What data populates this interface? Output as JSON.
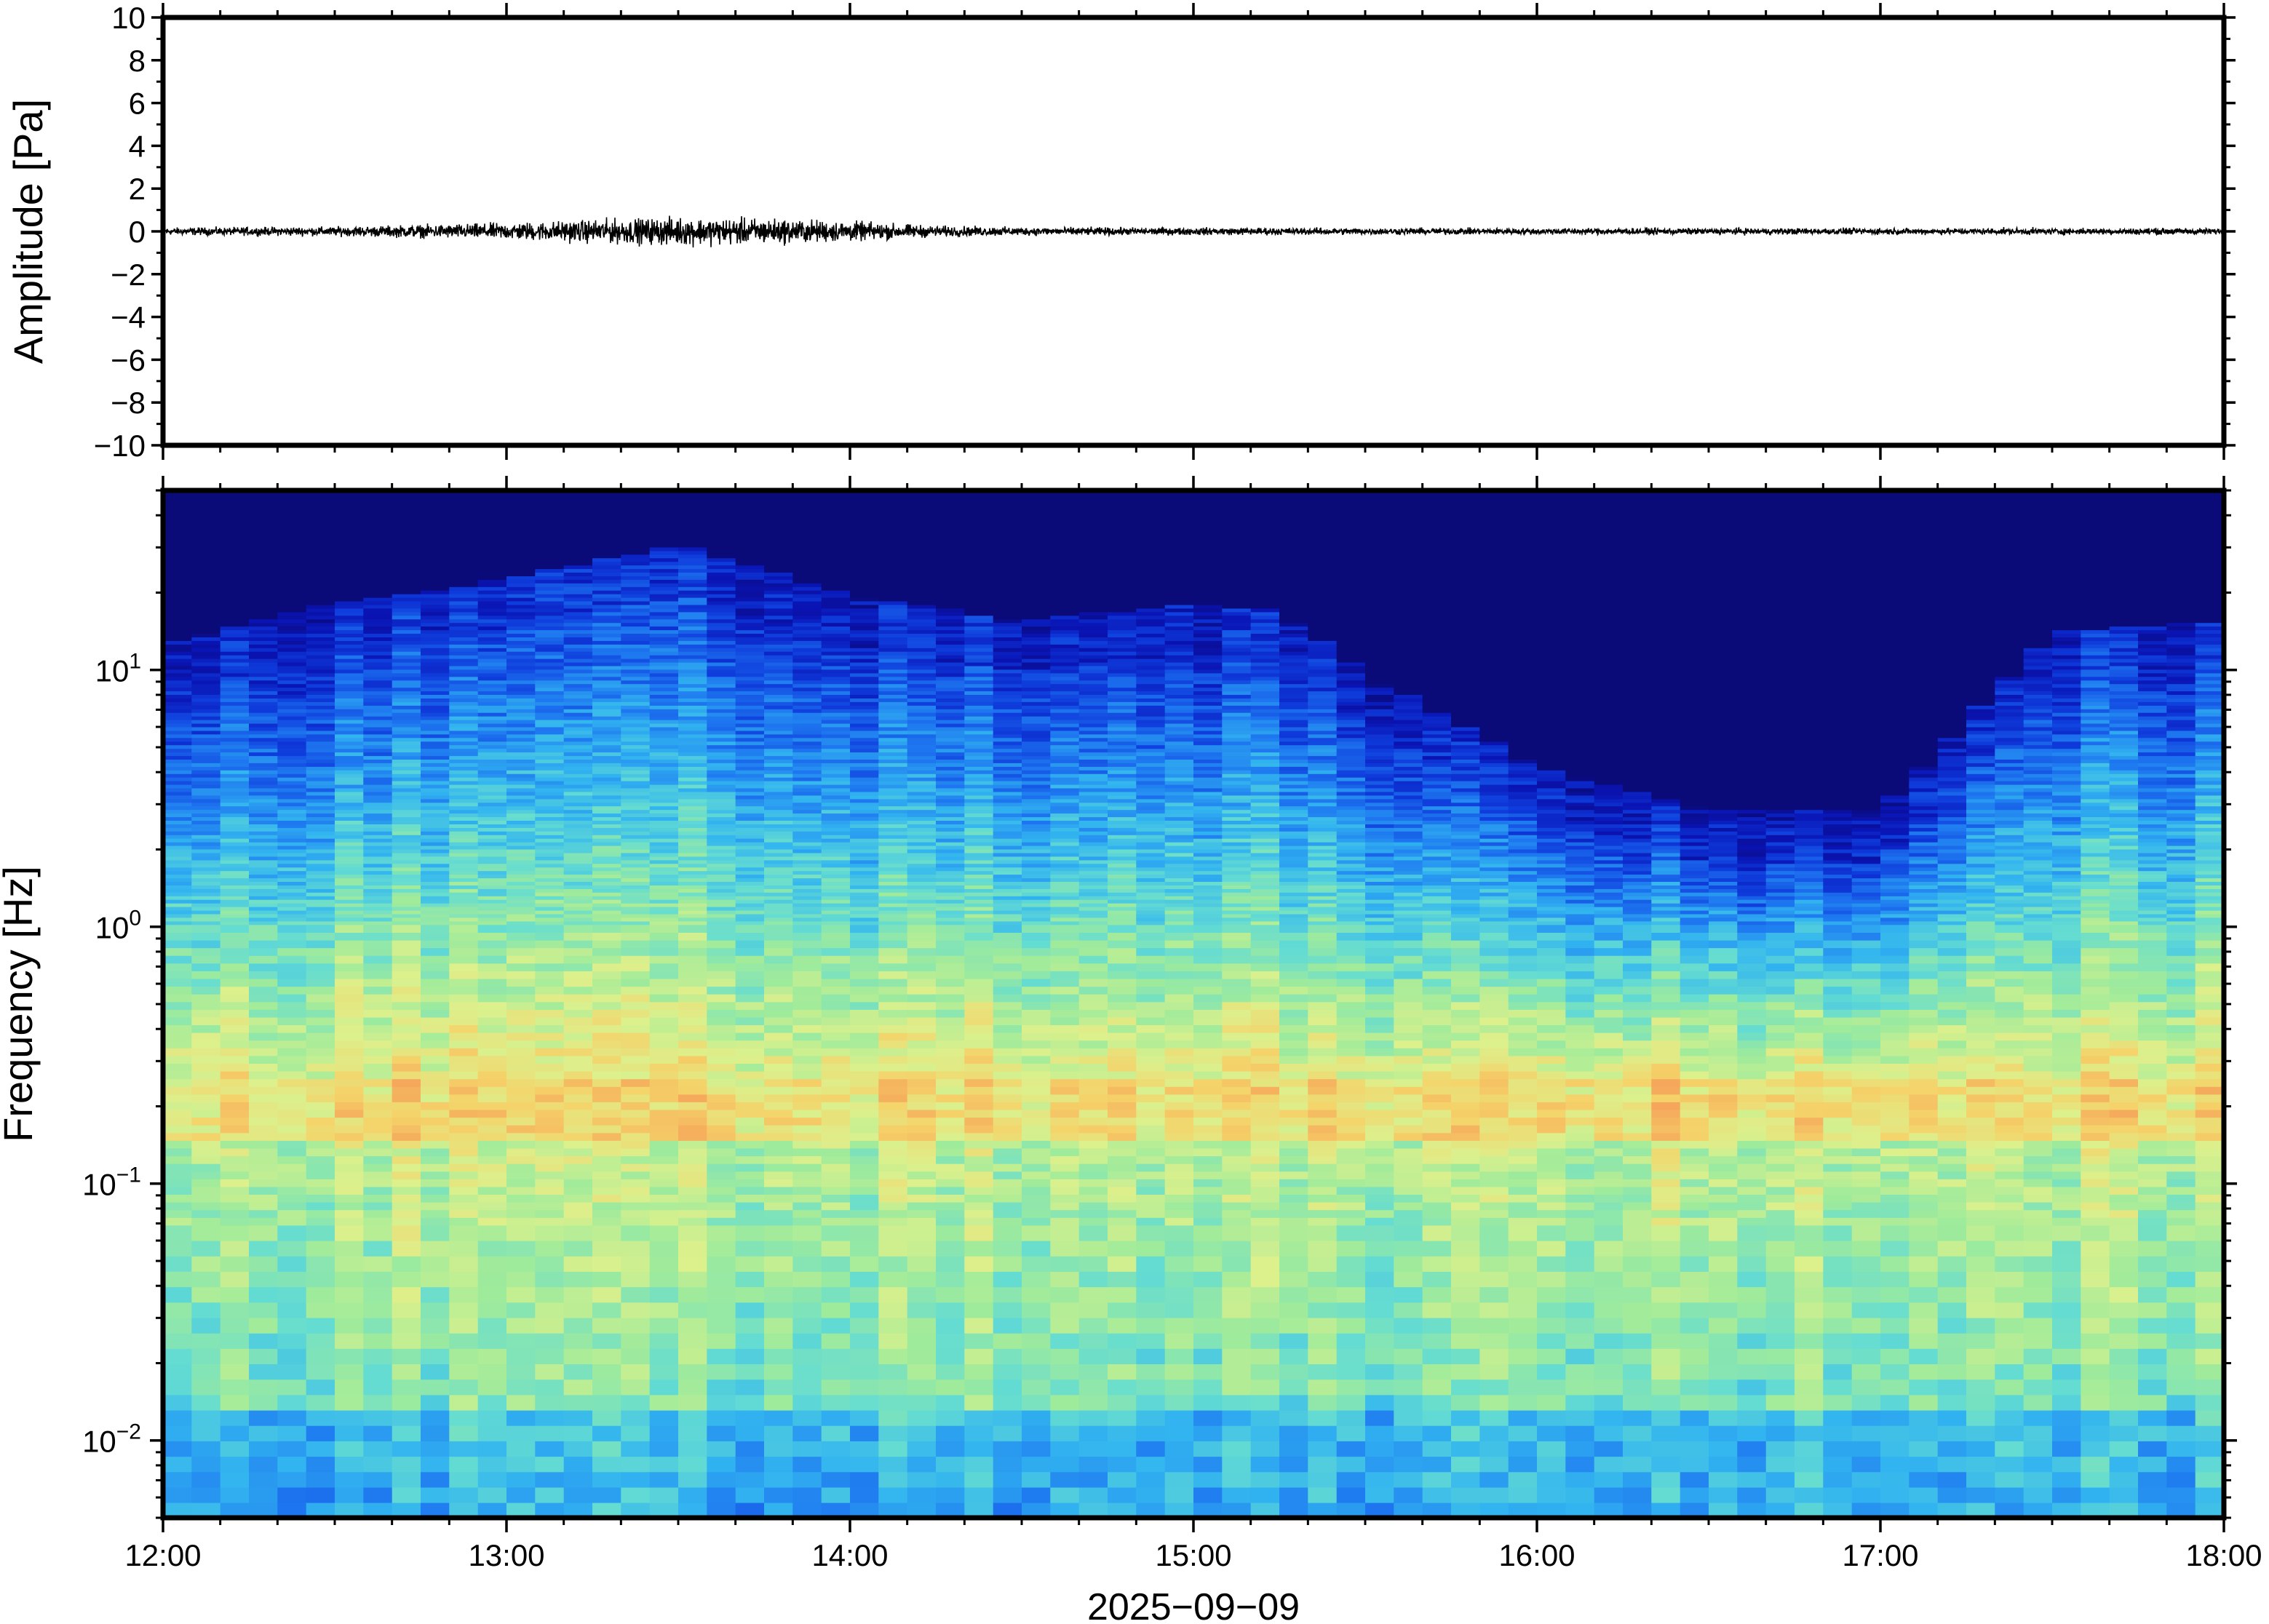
{
  "chart_data": [
    {
      "type": "line",
      "name": "amplitude-panel",
      "ylabel": "Amplitude [Pa]",
      "ylim": [
        -10,
        10
      ],
      "yticks": [
        "10",
        "8",
        "6",
        "4",
        "2",
        "0",
        "−2",
        "−4",
        "−6",
        "−8",
        "−10"
      ],
      "ytick_values": [
        10,
        8,
        6,
        4,
        2,
        0,
        -2,
        -4,
        -6,
        -8,
        -10
      ],
      "x_range": [
        "2025-09-09T12:00",
        "2025-09-09T18:00"
      ],
      "envelope": {
        "times": [
          "12:00",
          "12:30",
          "13:00",
          "13:15",
          "13:30",
          "13:45",
          "14:00",
          "14:15",
          "14:30",
          "15:00",
          "16:00",
          "17:00",
          "18:00"
        ],
        "half_width_pa": [
          0.08,
          0.1,
          0.18,
          0.25,
          0.3,
          0.28,
          0.22,
          0.12,
          0.09,
          0.08,
          0.07,
          0.07,
          0.07
        ]
      },
      "grid": false
    },
    {
      "type": "heatmap",
      "name": "spectrogram-panel",
      "ylabel": "Frequency [Hz]",
      "yscale": "log",
      "ylim": [
        0.005,
        50
      ],
      "yticks": [
        {
          "base": "10",
          "exp": "1",
          "value": 10
        },
        {
          "base": "10",
          "exp": "0",
          "value": 1
        },
        {
          "base": "10",
          "exp": "−1",
          "value": 0.1
        },
        {
          "base": "10",
          "exp": "−2",
          "value": 0.01
        }
      ],
      "xticks": [
        "12:00",
        "13:00",
        "14:00",
        "15:00",
        "16:00",
        "17:00",
        "18:00"
      ],
      "xlabel": "2025−09−09",
      "x_range": [
        "2025-09-09T12:00",
        "2025-09-09T18:00"
      ],
      "colormap": [
        "#0a0a78",
        "#0a14b4",
        "#0f3cdc",
        "#1e78f0",
        "#32b4f0",
        "#64dcd2",
        "#a0eb9b",
        "#dcf08c",
        "#f5d269",
        "#f5a55a"
      ],
      "energy_cutoff_hz": {
        "times": [
          "12:00",
          "12:30",
          "13:00",
          "13:30",
          "14:00",
          "14:30",
          "15:00",
          "15:15",
          "15:30",
          "16:00",
          "16:30",
          "17:00",
          "17:30",
          "18:00"
        ],
        "values": [
          9,
          13,
          16,
          22,
          14,
          11,
          13,
          12,
          7,
          3,
          2,
          2,
          10,
          11
        ]
      },
      "peak_band_hz": [
        0.15,
        0.25
      ],
      "legend": "none",
      "grid": false
    }
  ]
}
